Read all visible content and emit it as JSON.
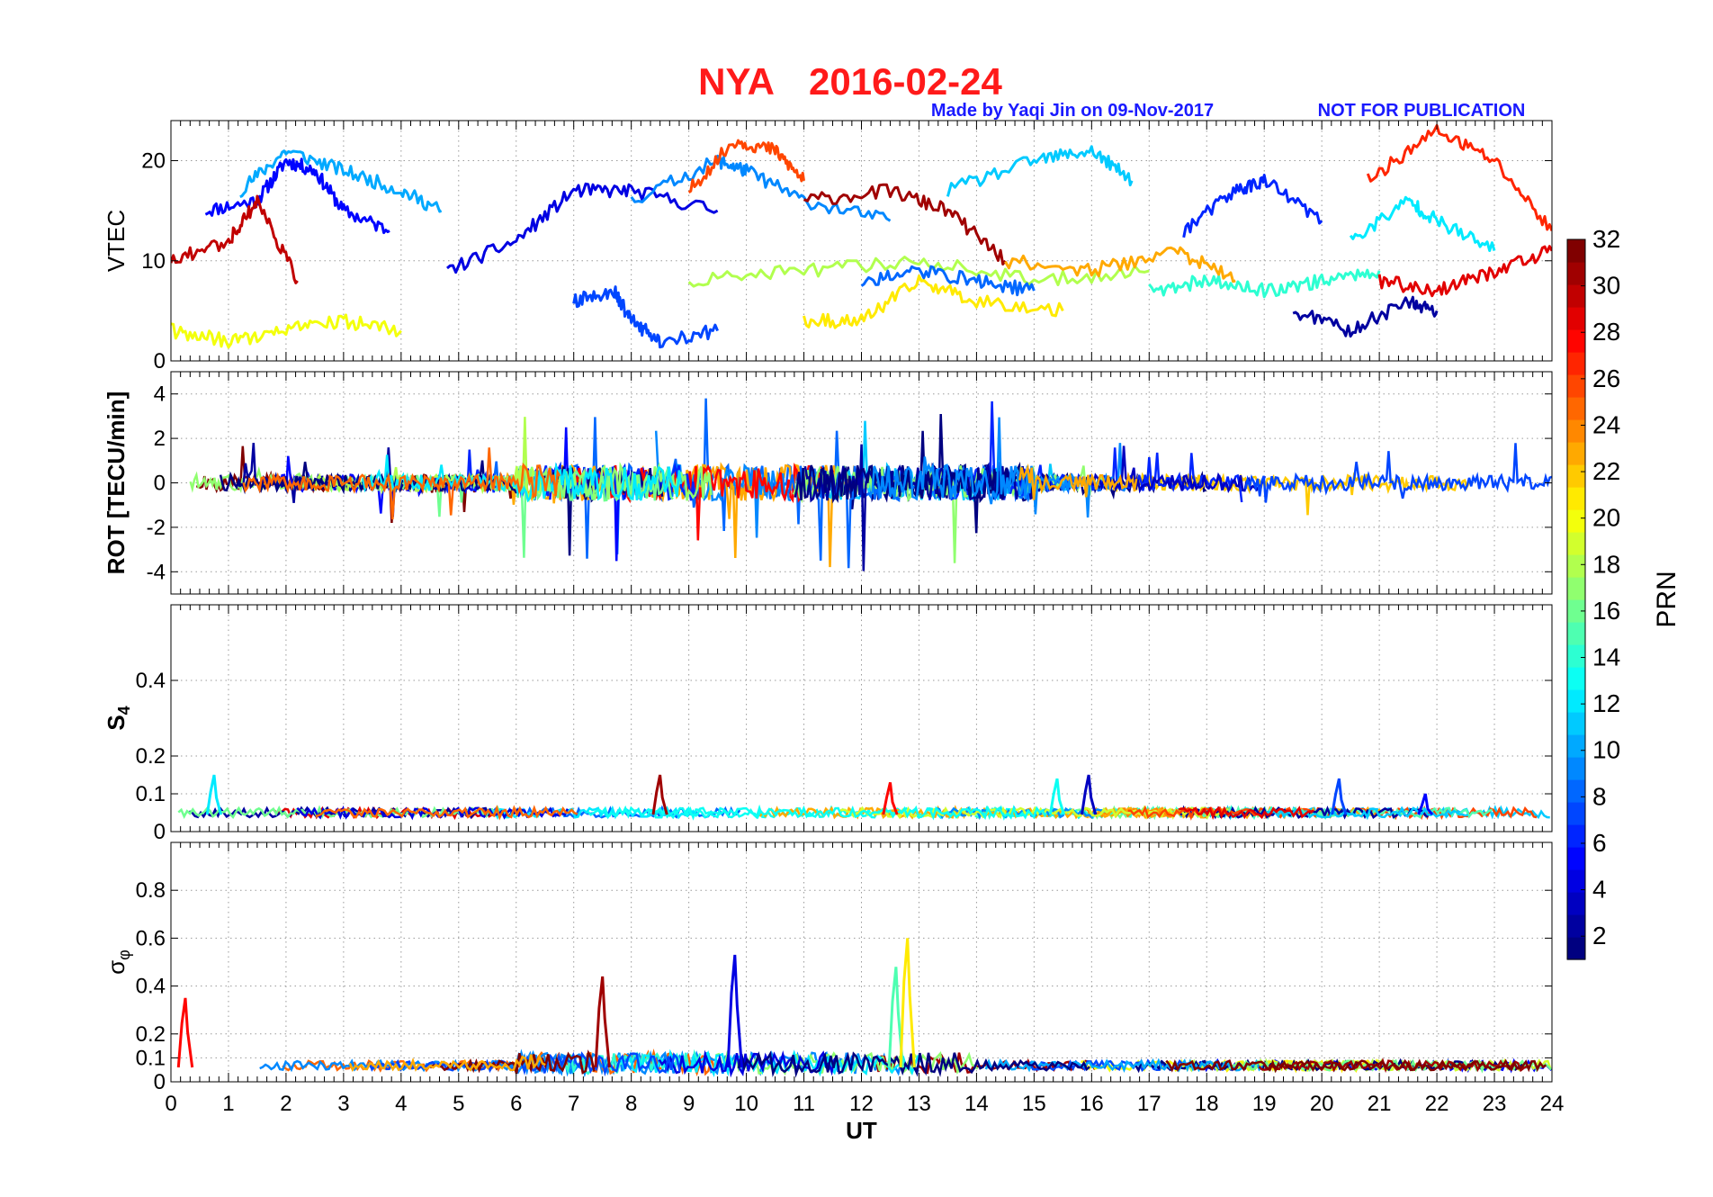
{
  "figure": {
    "station": "NYA",
    "date": "2016-02-24",
    "credit": "Made by Yaqi Jin on 09-Nov-2017",
    "notice": "NOT FOR PUBLICATION",
    "title_color": "#ff1a1a",
    "credit_color": "#1a1aff"
  },
  "chart_data": [
    {
      "type": "line",
      "panel": "VTEC",
      "ylabel": "VTEC",
      "xlim": [
        0,
        24
      ],
      "ylim": [
        0,
        24
      ],
      "yticks": [
        0,
        10,
        20
      ],
      "grid": true,
      "series": [
        {
          "prn": 5,
          "x": [
            0.6,
            1.5,
            2.0,
            2.5,
            3.0,
            3.8
          ],
          "y": [
            15,
            16,
            20,
            19,
            15,
            13
          ]
        },
        {
          "prn": 10,
          "x": [
            1.2,
            2.0,
            3.0,
            4.0,
            4.7
          ],
          "y": [
            17,
            21,
            19,
            17,
            15
          ]
        },
        {
          "prn": 4,
          "x": [
            4.8,
            6.0,
            7.0,
            8.0,
            9.5
          ],
          "y": [
            9,
            12,
            17,
            17,
            15
          ]
        },
        {
          "prn": 9,
          "x": [
            8.0,
            9.5,
            10.0,
            11.0,
            12.5
          ],
          "y": [
            16,
            20,
            19,
            16,
            14
          ]
        },
        {
          "prn": 26,
          "x": [
            9.0,
            9.8,
            10.5,
            11.0
          ],
          "y": [
            17,
            22,
            21,
            18
          ]
        },
        {
          "prn": 31,
          "x": [
            11.0,
            12.5,
            13.5,
            14.5
          ],
          "y": [
            16,
            17,
            15,
            10
          ]
        },
        {
          "prn": 11,
          "x": [
            13.5,
            15.0,
            16.0,
            16.7
          ],
          "y": [
            17,
            20,
            21,
            18
          ]
        },
        {
          "prn": 6,
          "x": [
            17.6,
            18.5,
            19.0,
            20.0
          ],
          "y": [
            13,
            17,
            18,
            14
          ]
        },
        {
          "prn": 27,
          "x": [
            20.8,
            22.0,
            23.0,
            24.0
          ],
          "y": [
            18,
            23,
            20,
            13
          ]
        },
        {
          "prn": 12,
          "x": [
            20.5,
            21.5,
            22.0,
            23.0
          ],
          "y": [
            12,
            16,
            14,
            11
          ]
        },
        {
          "prn": 30,
          "x": [
            0.0,
            1.0,
            1.5,
            2.2
          ],
          "y": [
            10,
            12,
            16,
            8
          ]
        },
        {
          "prn": 18,
          "x": [
            9.0,
            11.0,
            13.0,
            15.0,
            17.0
          ],
          "y": [
            8,
            9,
            10,
            8,
            9
          ]
        },
        {
          "prn": 21,
          "x": [
            11.0,
            12.0,
            13.0,
            14.0,
            15.5
          ],
          "y": [
            4,
            4,
            8,
            6,
            5
          ]
        },
        {
          "prn": 8,
          "x": [
            12.0,
            13.0,
            14.0,
            15.0
          ],
          "y": [
            8,
            9,
            8,
            7
          ]
        },
        {
          "prn": 14,
          "x": [
            17.0,
            18.0,
            19.0,
            20.0,
            21.0
          ],
          "y": [
            7,
            8,
            7,
            8,
            9
          ]
        },
        {
          "prn": 23,
          "x": [
            14.5,
            16.0,
            17.5,
            18.5
          ],
          "y": [
            10,
            9,
            11,
            8
          ]
        },
        {
          "prn": 2,
          "x": [
            19.5,
            20.5,
            21.5,
            22.0
          ],
          "y": [
            5,
            3,
            6,
            5
          ]
        },
        {
          "prn": 29,
          "x": [
            21.0,
            22.0,
            23.0,
            24.0
          ],
          "y": [
            8,
            7,
            9,
            11
          ]
        },
        {
          "prn": 20,
          "x": [
            0.0,
            1.0,
            2.0,
            3.0,
            4.0
          ],
          "y": [
            3,
            2,
            3,
            4,
            3
          ]
        },
        {
          "prn": 7,
          "x": [
            7.0,
            7.7,
            8.0,
            8.5,
            9.5
          ],
          "y": [
            6,
            7,
            4,
            2,
            3
          ]
        }
      ]
    },
    {
      "type": "line",
      "panel": "ROT",
      "ylabel": "ROT [TECU/min]",
      "xlim": [
        0,
        24
      ],
      "ylim": [
        -5,
        5
      ],
      "yticks": [
        -4,
        -2,
        0,
        2,
        4
      ],
      "grid": true
    },
    {
      "type": "line",
      "panel": "S4",
      "ylabel": "S4",
      "xlim": [
        0,
        24
      ],
      "ylim": [
        0,
        0.6
      ],
      "yticks": [
        0,
        0.1,
        0.2,
        0.4
      ],
      "grid": true,
      "peaks": [
        {
          "prn": 12,
          "x": 0.75,
          "y": 0.15
        },
        {
          "prn": 31,
          "x": 8.5,
          "y": 0.15
        },
        {
          "prn": 28,
          "x": 12.5,
          "y": 0.13
        },
        {
          "prn": 13,
          "x": 15.4,
          "y": 0.14
        },
        {
          "prn": 3,
          "x": 15.95,
          "y": 0.15
        },
        {
          "prn": 7,
          "x": 20.3,
          "y": 0.14
        },
        {
          "prn": 5,
          "x": 21.8,
          "y": 0.1
        }
      ]
    },
    {
      "type": "line",
      "panel": "sigma_phi",
      "ylabel": "σφ",
      "xlabel": "UT",
      "xlim": [
        0,
        24
      ],
      "ylim": [
        0,
        1.0
      ],
      "yticks": [
        0,
        0.1,
        0.2,
        0.4,
        0.6,
        0.8
      ],
      "xticks": [
        0,
        1,
        2,
        3,
        4,
        5,
        6,
        7,
        8,
        9,
        10,
        11,
        12,
        13,
        14,
        15,
        16,
        17,
        18,
        19,
        20,
        21,
        22,
        23,
        24
      ],
      "grid": true,
      "peaks": [
        {
          "prn": 28,
          "x": 0.25,
          "y": 0.35
        },
        {
          "prn": 31,
          "x": 7.5,
          "y": 0.44
        },
        {
          "prn": 4,
          "x": 9.8,
          "y": 0.53
        },
        {
          "prn": 15,
          "x": 12.6,
          "y": 0.48
        },
        {
          "prn": 21,
          "x": 12.8,
          "y": 0.6
        }
      ]
    },
    {
      "type": "heatmap",
      "panel": "colorbar",
      "label": "PRN",
      "range": [
        1,
        32
      ],
      "ticks": [
        2,
        4,
        6,
        8,
        10,
        12,
        14,
        16,
        18,
        20,
        22,
        24,
        26,
        28,
        30,
        32
      ],
      "colormap": "jet"
    }
  ]
}
